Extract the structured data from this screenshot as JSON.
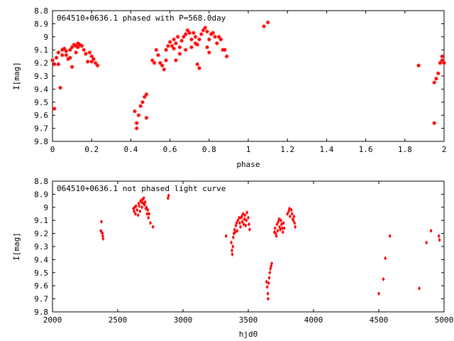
{
  "chart_data": [
    {
      "type": "scatter",
      "title": "064510+0636.1 phased with P=568.0day",
      "xlabel": "phase",
      "ylabel": "I[mag]",
      "xlim": [
        0,
        2
      ],
      "ylim": [
        8.8,
        9.8
      ],
      "y_inverted": true,
      "grid": false,
      "marker": "filled-star",
      "color": "#ff0000",
      "xticks": [
        "0",
        "0.2",
        "0.4",
        "0.6",
        "0.8",
        "1",
        "1.2",
        "1.4",
        "1.6",
        "1.8",
        "2"
      ],
      "yticks": [
        "8.8",
        "8.9",
        "9",
        "9.1",
        "9.2",
        "9.3",
        "9.4",
        "9.5",
        "9.6",
        "9.7",
        "9.8"
      ],
      "points": [
        [
          0.0,
          9.18
        ],
        [
          0.01,
          9.21
        ],
        [
          0.01,
          9.55
        ],
        [
          0.02,
          9.16
        ],
        [
          0.03,
          9.12
        ],
        [
          0.03,
          9.21
        ],
        [
          0.04,
          9.39
        ],
        [
          0.05,
          9.1
        ],
        [
          0.05,
          9.14
        ],
        [
          0.06,
          9.09
        ],
        [
          0.07,
          9.11
        ],
        [
          0.07,
          9.14
        ],
        [
          0.08,
          9.17
        ],
        [
          0.09,
          9.16
        ],
        [
          0.09,
          9.1
        ],
        [
          0.1,
          9.08
        ],
        [
          0.1,
          9.23
        ],
        [
          0.11,
          9.06
        ],
        [
          0.12,
          9.07
        ],
        [
          0.12,
          9.12
        ],
        [
          0.13,
          9.08
        ],
        [
          0.13,
          9.05
        ],
        [
          0.14,
          9.06
        ],
        [
          0.15,
          9.07
        ],
        [
          0.16,
          9.1
        ],
        [
          0.17,
          9.13
        ],
        [
          0.18,
          9.19
        ],
        [
          0.19,
          9.12
        ],
        [
          0.2,
          9.19
        ],
        [
          0.2,
          9.15
        ],
        [
          0.21,
          9.17
        ],
        [
          0.22,
          9.2
        ],
        [
          0.23,
          9.22
        ],
        [
          0.42,
          9.57
        ],
        [
          0.43,
          9.66
        ],
        [
          0.43,
          9.7
        ],
        [
          0.44,
          9.6
        ],
        [
          0.45,
          9.53
        ],
        [
          0.46,
          9.5
        ],
        [
          0.47,
          9.46
        ],
        [
          0.48,
          9.44
        ],
        [
          0.48,
          9.62
        ],
        [
          0.51,
          9.18
        ],
        [
          0.52,
          9.2
        ],
        [
          0.53,
          9.1
        ],
        [
          0.54,
          9.14
        ],
        [
          0.55,
          9.2
        ],
        [
          0.56,
          9.22
        ],
        [
          0.57,
          9.25
        ],
        [
          0.58,
          9.18
        ],
        [
          0.58,
          9.1
        ],
        [
          0.59,
          9.07
        ],
        [
          0.6,
          9.04
        ],
        [
          0.61,
          9.07
        ],
        [
          0.62,
          9.09
        ],
        [
          0.62,
          9.02
        ],
        [
          0.63,
          9.05
        ],
        [
          0.63,
          9.18
        ],
        [
          0.64,
          9.0
        ],
        [
          0.65,
          9.08
        ],
        [
          0.65,
          9.13
        ],
        [
          0.66,
          9.03
        ],
        [
          0.67,
          9.0
        ],
        [
          0.68,
          8.98
        ],
        [
          0.68,
          9.1
        ],
        [
          0.69,
          8.95
        ],
        [
          0.7,
          8.97
        ],
        [
          0.71,
          9.02
        ],
        [
          0.71,
          9.08
        ],
        [
          0.72,
          8.97
        ],
        [
          0.73,
          9.0
        ],
        [
          0.73,
          9.05
        ],
        [
          0.74,
          9.21
        ],
        [
          0.74,
          9.06
        ],
        [
          0.75,
          9.24
        ],
        [
          0.75,
          9.02
        ],
        [
          0.76,
          8.98
        ],
        [
          0.77,
          8.95
        ],
        [
          0.78,
          8.93
        ],
        [
          0.79,
          8.96
        ],
        [
          0.79,
          9.08
        ],
        [
          0.8,
          9.12
        ],
        [
          0.8,
          9.02
        ],
        [
          0.81,
          8.98
        ],
        [
          0.82,
          8.97
        ],
        [
          0.83,
          9.0
        ],
        [
          0.84,
          9.05
        ],
        [
          0.85,
          9.0
        ],
        [
          0.86,
          9.02
        ],
        [
          0.87,
          9.1
        ],
        [
          0.88,
          9.1
        ],
        [
          0.89,
          9.15
        ],
        [
          1.08,
          8.92
        ],
        [
          1.1,
          8.89
        ],
        [
          1.87,
          9.22
        ],
        [
          1.95,
          9.66
        ],
        [
          1.95,
          9.35
        ],
        [
          1.96,
          9.32
        ],
        [
          1.97,
          9.28
        ],
        [
          1.98,
          9.2
        ],
        [
          1.99,
          9.15
        ],
        [
          1.99,
          9.18
        ],
        [
          2.0,
          9.2
        ]
      ]
    },
    {
      "type": "scatter",
      "title": "064510+0636.1 not phased light curve",
      "xlabel": "hjd0",
      "ylabel": "I[mag]",
      "xlim": [
        2000,
        5000
      ],
      "ylim": [
        8.8,
        9.8
      ],
      "y_inverted": true,
      "grid": false,
      "marker": "filled-diamond",
      "color": "#ff0000",
      "xticks": [
        "2000",
        "2500",
        "3000",
        "3500",
        "4000",
        "4500",
        "5000"
      ],
      "yticks": [
        "8.8",
        "8.9",
        "9",
        "9.1",
        "9.2",
        "9.3",
        "9.4",
        "9.5",
        "9.6",
        "9.7",
        "9.8"
      ],
      "points": [
        [
          2370,
          9.18
        ],
        [
          2375,
          9.11
        ],
        [
          2378,
          9.19
        ],
        [
          2382,
          9.2
        ],
        [
          2385,
          9.22
        ],
        [
          2388,
          9.24
        ],
        [
          2620,
          9.01
        ],
        [
          2625,
          9.03
        ],
        [
          2630,
          9.0
        ],
        [
          2635,
          9.05
        ],
        [
          2640,
          8.99
        ],
        [
          2648,
          9.02
        ],
        [
          2655,
          9.06
        ],
        [
          2660,
          8.97
        ],
        [
          2665,
          8.99
        ],
        [
          2670,
          9.03
        ],
        [
          2675,
          8.95
        ],
        [
          2680,
          8.96
        ],
        [
          2685,
          9.0
        ],
        [
          2690,
          8.94
        ],
        [
          2695,
          8.97
        ],
        [
          2700,
          8.93
        ],
        [
          2705,
          8.98
        ],
        [
          2710,
          8.96
        ],
        [
          2715,
          9.01
        ],
        [
          2720,
          9.0
        ],
        [
          2725,
          9.05
        ],
        [
          2730,
          9.02
        ],
        [
          2735,
          9.08
        ],
        [
          2740,
          9.05
        ],
        [
          2750,
          9.12
        ],
        [
          2770,
          9.15
        ],
        [
          2885,
          8.93
        ],
        [
          2890,
          8.91
        ],
        [
          3330,
          9.22
        ],
        [
          3370,
          9.27
        ],
        [
          3375,
          9.33
        ],
        [
          3378,
          9.36
        ],
        [
          3382,
          9.3
        ],
        [
          3385,
          9.23
        ],
        [
          3390,
          9.2
        ],
        [
          3395,
          9.17
        ],
        [
          3400,
          9.19
        ],
        [
          3405,
          9.14
        ],
        [
          3410,
          9.12
        ],
        [
          3415,
          9.18
        ],
        [
          3420,
          9.1
        ],
        [
          3430,
          9.08
        ],
        [
          3435,
          9.12
        ],
        [
          3440,
          9.15
        ],
        [
          3445,
          9.08
        ],
        [
          3450,
          9.07
        ],
        [
          3455,
          9.11
        ],
        [
          3460,
          9.05
        ],
        [
          3465,
          9.13
        ],
        [
          3470,
          9.09
        ],
        [
          3475,
          9.06
        ],
        [
          3480,
          9.14
        ],
        [
          3485,
          9.1
        ],
        [
          3490,
          9.04
        ],
        [
          3500,
          9.08
        ],
        [
          3505,
          9.13
        ],
        [
          3510,
          9.17
        ],
        [
          3640,
          9.57
        ],
        [
          3645,
          9.61
        ],
        [
          3650,
          9.66
        ],
        [
          3652,
          9.7
        ],
        [
          3656,
          9.58
        ],
        [
          3660,
          9.54
        ],
        [
          3665,
          9.5
        ],
        [
          3670,
          9.47
        ],
        [
          3675,
          9.45
        ],
        [
          3680,
          9.43
        ],
        [
          3700,
          9.19
        ],
        [
          3705,
          9.16
        ],
        [
          3710,
          9.2
        ],
        [
          3715,
          9.22
        ],
        [
          3720,
          9.13
        ],
        [
          3725,
          9.18
        ],
        [
          3730,
          9.11
        ],
        [
          3735,
          9.09
        ],
        [
          3740,
          9.15
        ],
        [
          3745,
          9.17
        ],
        [
          3750,
          9.1
        ],
        [
          3755,
          9.13
        ],
        [
          3760,
          9.16
        ],
        [
          3765,
          9.19
        ],
        [
          3770,
          9.12
        ],
        [
          3775,
          9.16
        ],
        [
          3800,
          9.05
        ],
        [
          3810,
          9.03
        ],
        [
          3815,
          9.01
        ],
        [
          3820,
          9.07
        ],
        [
          3830,
          9.02
        ],
        [
          3835,
          9.05
        ],
        [
          3840,
          9.09
        ],
        [
          3845,
          9.1
        ],
        [
          3850,
          9.07
        ],
        [
          3855,
          9.12
        ],
        [
          3860,
          9.15
        ],
        [
          4500,
          9.66
        ],
        [
          4535,
          9.55
        ],
        [
          4550,
          9.39
        ],
        [
          4585,
          9.22
        ],
        [
          4810,
          9.62
        ],
        [
          4865,
          9.27
        ],
        [
          4900,
          9.18
        ],
        [
          4960,
          9.22
        ],
        [
          4965,
          9.25
        ]
      ]
    }
  ]
}
